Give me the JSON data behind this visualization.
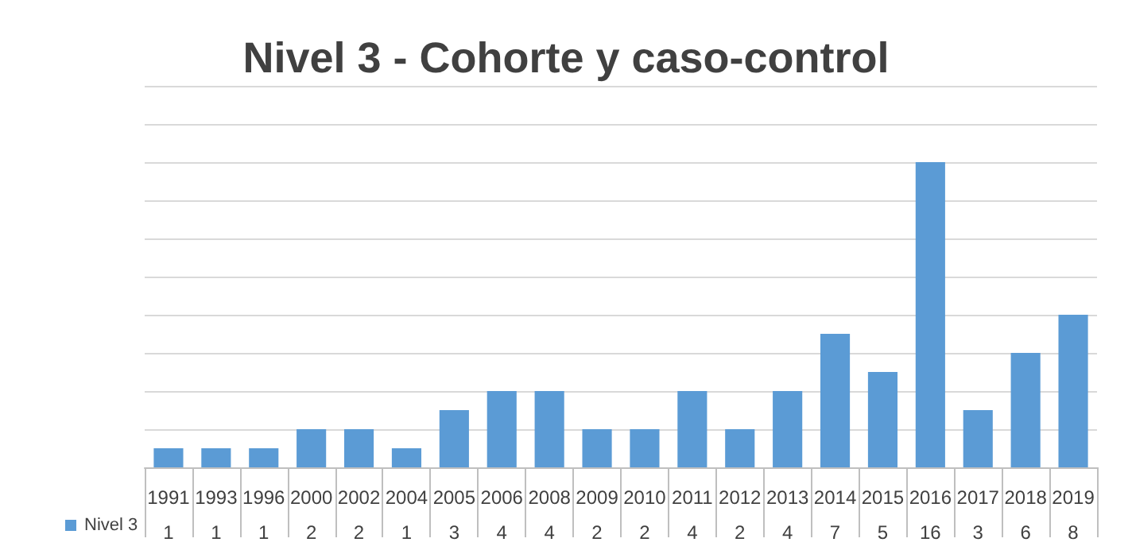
{
  "chart_data": {
    "type": "bar",
    "title": "Nivel 3 - Cohorte y caso-control",
    "categories": [
      "1991",
      "1993",
      "1996",
      "2000",
      "2002",
      "2004",
      "2005",
      "2006",
      "2008",
      "2009",
      "2010",
      "2011",
      "2012",
      "2013",
      "2014",
      "2015",
      "2016",
      "2017",
      "2018",
      "2019"
    ],
    "series": [
      {
        "name": "Nivel 3",
        "color": "#5b9bd5",
        "values": [
          1,
          1,
          1,
          2,
          2,
          1,
          3,
          4,
          4,
          2,
          2,
          4,
          2,
          4,
          7,
          5,
          16,
          3,
          6,
          8
        ]
      }
    ],
    "ylim": [
      0,
      20
    ],
    "yticks": [
      {
        "value": 0,
        "label": null
      },
      {
        "value": 2,
        "label": null
      },
      {
        "value": 4,
        "label": null
      },
      {
        "value": 6,
        "label": null
      },
      {
        "value": 8,
        "label": null
      },
      {
        "value": 10,
        "label": null
      },
      {
        "value": 12,
        "label": null
      },
      {
        "value": 14,
        "label": null
      },
      {
        "value": 16,
        "label": null
      },
      {
        "value": 18,
        "label": null
      },
      {
        "value": 20,
        "label": null
      }
    ],
    "grid": "y",
    "legend": "bottom",
    "tick_labels": "x",
    "data_labels": true
  }
}
